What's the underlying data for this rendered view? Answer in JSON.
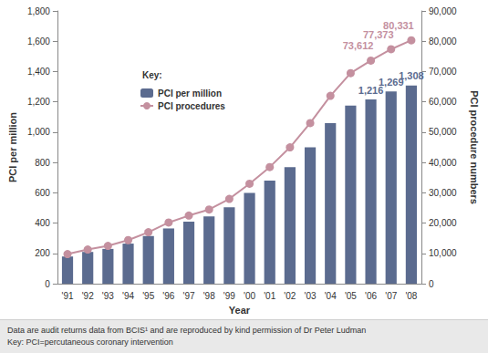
{
  "chart_data": {
    "type": "bar",
    "categories": [
      "'91",
      "'92",
      "'93",
      "'94",
      "'95",
      "'96",
      "'97",
      "'98",
      "'99",
      "'00",
      "'01",
      "'02",
      "'03",
      "'04",
      "'05",
      "'06",
      "'07",
      "'08"
    ],
    "x_label": "Year",
    "y_label": "PCI per million",
    "y2_label": "PCI procedure numbers",
    "legend_title": "Key:",
    "legend": "upper left",
    "grid": false,
    "data_labels": true,
    "ylim": [
      0,
      1800
    ],
    "yticks": [
      0,
      200,
      400,
      600,
      800,
      {
        "value": 1000,
        "label": "1,000"
      },
      {
        "value": 1200,
        "label": "1,200"
      },
      {
        "value": 1400,
        "label": "1,400"
      },
      {
        "value": 1600,
        "label": "1,600"
      },
      {
        "value": 1800,
        "label": "1,800"
      }
    ],
    "y2lim": [
      0,
      90000
    ],
    "y2ticks": [
      0,
      {
        "value": 10000,
        "label": "10,000"
      },
      {
        "value": 20000,
        "label": "20,000"
      },
      {
        "value": 30000,
        "label": "30,000"
      },
      {
        "value": 40000,
        "label": "40,000"
      },
      {
        "value": 50000,
        "label": "50,000"
      },
      {
        "value": 60000,
        "label": "60,000"
      },
      {
        "value": 70000,
        "label": "70,000"
      },
      {
        "value": 80000,
        "label": "80,000"
      },
      {
        "value": 90000,
        "label": "90,000"
      }
    ],
    "series": [
      {
        "name": "PCI per million",
        "type": "bar",
        "color": "#5b6b8f",
        "values": [
          180,
          210,
          230,
          265,
          315,
          365,
          410,
          445,
          505,
          600,
          680,
          770,
          900,
          1060,
          1175,
          1216,
          1269,
          1308
        ],
        "value_labels": [
          null,
          null,
          null,
          null,
          null,
          null,
          null,
          null,
          null,
          null,
          null,
          null,
          null,
          null,
          null,
          "1,216",
          "1,269",
          "1,308"
        ]
      },
      {
        "name": "PCI procedures",
        "type": "line",
        "axis": "y2",
        "color": "#c4909f",
        "marker": "circle",
        "values": [
          9800,
          11300,
          12500,
          14400,
          17000,
          20200,
          22500,
          24500,
          28000,
          33000,
          38500,
          45000,
          53000,
          62000,
          69500,
          73612,
          77373,
          80331
        ],
        "value_labels": [
          null,
          null,
          null,
          null,
          null,
          null,
          null,
          null,
          null,
          null,
          null,
          null,
          null,
          null,
          null,
          "73,612",
          "77,373",
          "80,331"
        ]
      }
    ],
    "notes": [
      "Data are audit returns data from BCIS¹ and are reproduced by kind permission of Dr Peter Ludman",
      "Key: PCI=percutaneous coronary intervention"
    ]
  }
}
